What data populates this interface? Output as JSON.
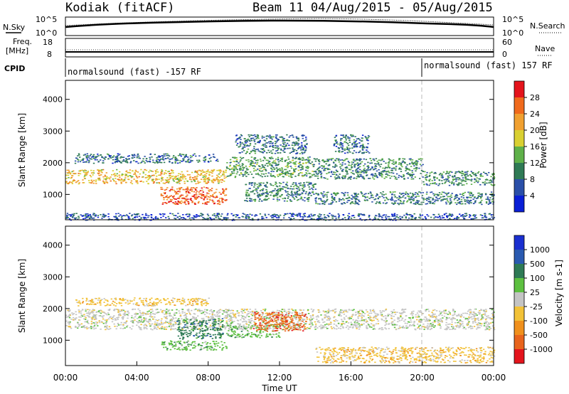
{
  "header": {
    "station": "Kodiak (fitACF)",
    "beam_info": "Beam 11 04/Aug/2015 - 05/Aug/2015"
  },
  "panels": {
    "nsky_label": "N.Sky",
    "nsky_ticks": [
      "10^5",
      "10^0"
    ],
    "nsearch_label": "N.Search",
    "nsearch_ticks": [
      "10^5",
      "10^0"
    ],
    "freq_label": "Freq.",
    "freq_unit": "[MHz]",
    "freq_ticks": [
      "18",
      "8"
    ],
    "nave_label": "Nave",
    "nave_ticks": [
      "60",
      "0"
    ],
    "cpid_label": "CPID",
    "cpid_segments": [
      "normalsound (fast) -157 RF",
      "normalsound (fast) 157 RF"
    ]
  },
  "chart_data": [
    {
      "type": "heatmap",
      "name": "power",
      "ylabel": "Slant Range [km]",
      "yticks": [
        "1000",
        "2000",
        "3000",
        "4000"
      ],
      "ylim": [
        200,
        4600
      ],
      "colorbar": {
        "label": "Power [dB]",
        "ticks": [
          "4",
          "8",
          "12",
          "16",
          "20",
          "24",
          "28"
        ],
        "colors": [
          "#0a1fd6",
          "#2a4fa8",
          "#2f7a55",
          "#5fb14a",
          "#d9d032",
          "#f0a030",
          "#f06a1c",
          "#e4141c"
        ],
        "range": [
          0,
          32
        ]
      },
      "bands": [
        {
          "x0": 0.0,
          "x1": 9.0,
          "y0": 1350,
          "y1": 1800,
          "level": 20
        },
        {
          "x0": 9.0,
          "x1": 14.0,
          "y0": 1550,
          "y1": 2200,
          "level": 12
        },
        {
          "x0": 14.0,
          "x1": 20.0,
          "y0": 1500,
          "y1": 2150,
          "level": 10
        },
        {
          "x0": 20.0,
          "x1": 24.0,
          "y0": 1300,
          "y1": 1750,
          "level": 10
        },
        {
          "x0": 5.3,
          "x1": 9.0,
          "y0": 700,
          "y1": 1250,
          "level": 26
        },
        {
          "x0": 0.5,
          "x1": 8.5,
          "y0": 2000,
          "y1": 2300,
          "level": 8
        },
        {
          "x0": 10.0,
          "x1": 14.0,
          "y0": 800,
          "y1": 1400,
          "level": 10
        },
        {
          "x0": 14.0,
          "x1": 24.0,
          "y0": 700,
          "y1": 1100,
          "level": 9
        },
        {
          "x0": 9.5,
          "x1": 13.5,
          "y0": 2300,
          "y1": 2900,
          "level": 8
        },
        {
          "x0": 15.0,
          "x1": 17.0,
          "y0": 2300,
          "y1": 2900,
          "level": 8
        },
        {
          "x0": 0.0,
          "x1": 24.0,
          "y0": 200,
          "y1": 420,
          "level": 6
        }
      ]
    },
    {
      "type": "heatmap",
      "name": "velocity",
      "xlabel": "Time UT",
      "xticks": [
        "00:00",
        "04:00",
        "08:00",
        "12:00",
        "16:00",
        "20:00",
        "00:00"
      ],
      "xlim": [
        0,
        24
      ],
      "ylabel": "Slant Range [km]",
      "yticks": [
        "1000",
        "2000",
        "3000",
        "4000"
      ],
      "ylim": [
        200,
        4600
      ],
      "colorbar": {
        "label": "Velocity [m s-1]",
        "ticks": [
          "1000",
          "500",
          "100",
          "25",
          "-25",
          "-100",
          "-500",
          "-1000"
        ],
        "colors": [
          "#1a2fd0",
          "#2a5ab0",
          "#2e7a55",
          "#5dc040",
          "#c4c4c4",
          "#f2c238",
          "#f0901c",
          "#e8641c",
          "#e4141c"
        ]
      },
      "bands": [
        {
          "x0": 0.0,
          "x1": 24.0,
          "y0": 1350,
          "y1": 2000,
          "level": 4
        },
        {
          "x0": 6.2,
          "x1": 8.8,
          "y0": 1050,
          "y1": 1700,
          "level": 2
        },
        {
          "x0": 5.3,
          "x1": 9.0,
          "y0": 700,
          "y1": 1000,
          "level": 3
        },
        {
          "x0": 9.0,
          "x1": 12.0,
          "y0": 1100,
          "y1": 1500,
          "level": 3
        },
        {
          "x0": 10.5,
          "x1": 13.5,
          "y0": 1300,
          "y1": 1900,
          "level": 7
        },
        {
          "x0": 14.0,
          "x1": 24.0,
          "y0": 300,
          "y1": 800,
          "level": 5
        },
        {
          "x0": 0.5,
          "x1": 8.0,
          "y0": 2100,
          "y1": 2350,
          "level": 5
        }
      ]
    }
  ]
}
